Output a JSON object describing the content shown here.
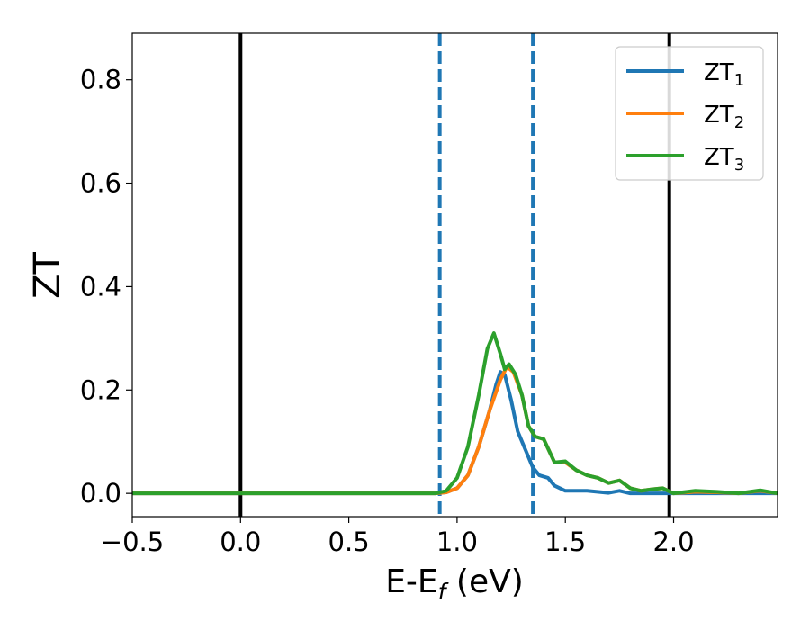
{
  "chart_data": {
    "type": "line",
    "xlabel": "E-E",
    "xlabel_sub": "f",
    "xlabel_unit": " (eV)",
    "ylabel": "ZT",
    "xlim": [
      -0.5,
      2.48
    ],
    "ylim": [
      -0.045,
      0.89
    ],
    "xticks": [
      -0.5,
      0.0,
      0.5,
      1.0,
      1.5,
      2.0
    ],
    "xtick_labels": [
      "−0.5",
      "0.0",
      "0.5",
      "1.0",
      "1.5",
      "2.0"
    ],
    "yticks": [
      0.0,
      0.2,
      0.4,
      0.6,
      0.8
    ],
    "ytick_labels": [
      "0.0",
      "0.2",
      "0.4",
      "0.6",
      "0.8"
    ],
    "grid": false,
    "legend_position": "top-right",
    "vlines": [
      {
        "x": 0.0,
        "style": "solid",
        "color": "#000000"
      },
      {
        "x": 1.98,
        "style": "solid",
        "color": "#000000"
      },
      {
        "x": 0.92,
        "style": "dashed",
        "color": "#1f77b4"
      },
      {
        "x": 1.35,
        "style": "dashed",
        "color": "#1f77b4"
      }
    ],
    "series": [
      {
        "name": "ZT",
        "sub": "1",
        "color": "#1f77b4",
        "points": [
          [
            -0.5,
            0
          ],
          [
            0.9,
            0
          ],
          [
            0.95,
            0.002
          ],
          [
            1.0,
            0.01
          ],
          [
            1.05,
            0.035
          ],
          [
            1.1,
            0.09
          ],
          [
            1.15,
            0.16
          ],
          [
            1.18,
            0.21
          ],
          [
            1.2,
            0.235
          ],
          [
            1.22,
            0.23
          ],
          [
            1.25,
            0.18
          ],
          [
            1.28,
            0.12
          ],
          [
            1.32,
            0.08
          ],
          [
            1.35,
            0.05
          ],
          [
            1.38,
            0.035
          ],
          [
            1.42,
            0.03
          ],
          [
            1.45,
            0.015
          ],
          [
            1.5,
            0.005
          ],
          [
            1.6,
            0.005
          ],
          [
            1.7,
            0.001
          ],
          [
            1.75,
            0.005
          ],
          [
            1.8,
            0.0
          ],
          [
            1.9,
            0.0
          ],
          [
            2.48,
            0.0
          ]
        ]
      },
      {
        "name": "ZT",
        "sub": "2",
        "color": "#ff7f0e",
        "points": [
          [
            -0.5,
            0
          ],
          [
            0.9,
            0
          ],
          [
            0.95,
            0.002
          ],
          [
            1.0,
            0.01
          ],
          [
            1.05,
            0.035
          ],
          [
            1.1,
            0.09
          ],
          [
            1.15,
            0.16
          ],
          [
            1.2,
            0.22
          ],
          [
            1.23,
            0.245
          ],
          [
            1.26,
            0.235
          ],
          [
            1.3,
            0.19
          ],
          [
            1.33,
            0.13
          ],
          [
            1.36,
            0.11
          ],
          [
            1.4,
            0.105
          ],
          [
            1.45,
            0.06
          ],
          [
            1.5,
            0.06
          ],
          [
            1.55,
            0.045
          ],
          [
            1.6,
            0.035
          ],
          [
            1.65,
            0.03
          ],
          [
            1.7,
            0.02
          ],
          [
            1.75,
            0.025
          ],
          [
            1.8,
            0.01
          ],
          [
            1.85,
            0.005
          ],
          [
            1.9,
            0.008
          ],
          [
            1.95,
            0.01
          ],
          [
            2.0,
            0.0
          ],
          [
            2.1,
            0.003
          ],
          [
            2.2,
            0.002
          ],
          [
            2.3,
            0.0
          ],
          [
            2.4,
            0.005
          ],
          [
            2.48,
            0.0
          ]
        ]
      },
      {
        "name": "ZT",
        "sub": "3",
        "color": "#2ca02c",
        "points": [
          [
            -0.5,
            0
          ],
          [
            0.9,
            0
          ],
          [
            0.95,
            0.005
          ],
          [
            1.0,
            0.03
          ],
          [
            1.05,
            0.09
          ],
          [
            1.1,
            0.19
          ],
          [
            1.14,
            0.28
          ],
          [
            1.17,
            0.31
          ],
          [
            1.2,
            0.27
          ],
          [
            1.22,
            0.24
          ],
          [
            1.24,
            0.25
          ],
          [
            1.27,
            0.23
          ],
          [
            1.3,
            0.19
          ],
          [
            1.33,
            0.13
          ],
          [
            1.36,
            0.11
          ],
          [
            1.4,
            0.105
          ],
          [
            1.45,
            0.06
          ],
          [
            1.5,
            0.062
          ],
          [
            1.55,
            0.045
          ],
          [
            1.6,
            0.035
          ],
          [
            1.65,
            0.03
          ],
          [
            1.7,
            0.02
          ],
          [
            1.75,
            0.025
          ],
          [
            1.8,
            0.01
          ],
          [
            1.85,
            0.005
          ],
          [
            1.9,
            0.008
          ],
          [
            1.95,
            0.01
          ],
          [
            2.0,
            0.0
          ],
          [
            2.1,
            0.005
          ],
          [
            2.2,
            0.003
          ],
          [
            2.3,
            0.0
          ],
          [
            2.4,
            0.006
          ],
          [
            2.48,
            0.0
          ]
        ]
      }
    ]
  }
}
